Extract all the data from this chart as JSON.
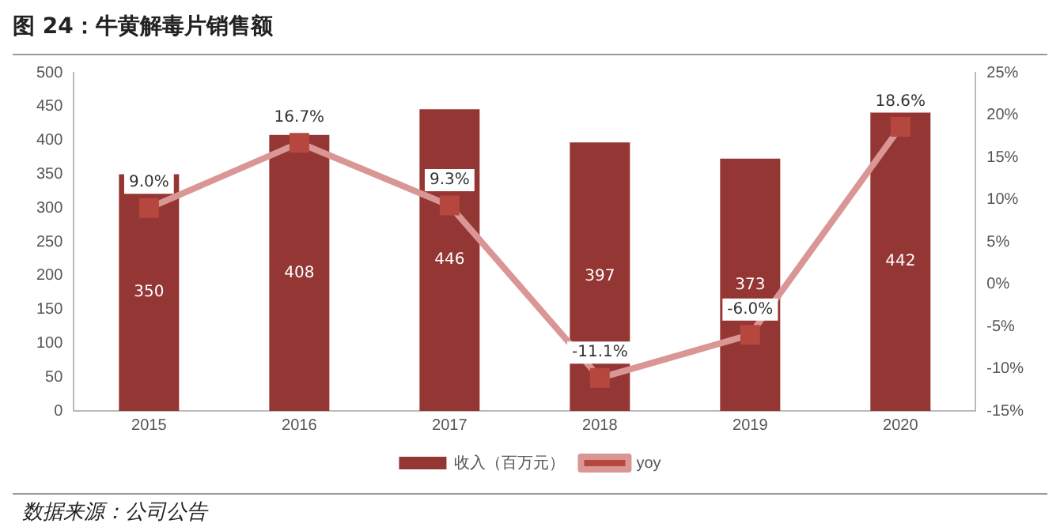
{
  "chart_data": {
    "type": "bar",
    "title": "图 24：牛黄解毒片销售额",
    "categories": [
      "2015",
      "2016",
      "2017",
      "2018",
      "2019",
      "2020"
    ],
    "series": [
      {
        "name": "收入（百万元）",
        "color": "#943634",
        "values": [
          350,
          408,
          446,
          397,
          373,
          442
        ]
      },
      {
        "name": "yoy",
        "type": "line",
        "axis": "y2",
        "color": "#d99694",
        "marker": "square",
        "values": [
          9.0,
          16.7,
          9.3,
          -11.1,
          -6.0,
          18.6
        ],
        "value_labels": [
          "9.0%",
          "16.7%",
          "9.3%",
          "-11.1%",
          "-6.0%",
          "18.6%"
        ]
      }
    ],
    "ylim": [
      0,
      500
    ],
    "yticks": [
      0,
      50,
      100,
      150,
      200,
      250,
      300,
      350,
      400,
      450,
      500
    ],
    "y2lim": [
      -15,
      25
    ],
    "y2ticks": [
      {
        "value": -15,
        "label": "-15%"
      },
      {
        "value": -10,
        "label": "-10%"
      },
      {
        "value": -5,
        "label": "-5%"
      },
      {
        "value": 0,
        "label": "0%"
      },
      {
        "value": 5,
        "label": "5%"
      },
      {
        "value": 10,
        "label": "10%"
      },
      {
        "value": 15,
        "label": "15%"
      },
      {
        "value": 20,
        "label": "20%"
      },
      {
        "value": 25,
        "label": "25%"
      }
    ],
    "data_labels": true,
    "legend": "bottom",
    "grid": false,
    "annotations": [
      "数据来源：公司公告"
    ]
  }
}
